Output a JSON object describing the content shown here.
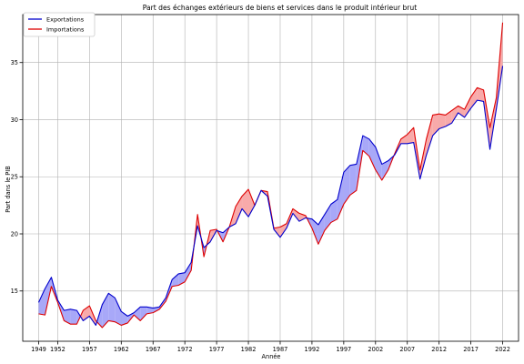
{
  "chart_data": {
    "type": "line",
    "title": "Part des échanges extérieurs de biens et services dans le produit intérieur brut",
    "xlabel": "Année",
    "ylabel": "Part dans le PIB",
    "xlim": [
      1946.5,
      2024.5
    ],
    "ylim": [
      10.6,
      39.2
    ],
    "x_ticks": [
      1949,
      1952,
      1957,
      1962,
      1967,
      1972,
      1977,
      1982,
      1987,
      1992,
      1997,
      2002,
      2007,
      2012,
      2017,
      2022
    ],
    "y_ticks": [
      15,
      20,
      25,
      30,
      35
    ],
    "grid": true,
    "legend_position": "top-left",
    "x": [
      1949,
      1950,
      1951,
      1952,
      1953,
      1954,
      1955,
      1956,
      1957,
      1958,
      1959,
      1960,
      1961,
      1962,
      1963,
      1964,
      1965,
      1966,
      1967,
      1968,
      1969,
      1970,
      1971,
      1972,
      1973,
      1974,
      1975,
      1976,
      1977,
      1978,
      1979,
      1980,
      1981,
      1982,
      1983,
      1984,
      1985,
      1986,
      1987,
      1988,
      1989,
      1990,
      1991,
      1992,
      1993,
      1994,
      1995,
      1996,
      1997,
      1998,
      1999,
      2000,
      2001,
      2002,
      2003,
      2004,
      2005,
      2006,
      2007,
      2008,
      2009,
      2010,
      2011,
      2012,
      2013,
      2014,
      2015,
      2016,
      2017,
      2018,
      2019,
      2020,
      2021,
      2022
    ],
    "series": [
      {
        "name": "Exportations",
        "color": "#0000cc",
        "values": [
          14.0,
          15.2,
          16.2,
          14.2,
          13.3,
          13.4,
          13.3,
          12.4,
          12.8,
          12.0,
          13.8,
          14.8,
          14.4,
          13.2,
          12.8,
          13.1,
          13.6,
          13.6,
          13.5,
          13.6,
          14.4,
          16.0,
          16.5,
          16.6,
          17.5,
          20.7,
          18.8,
          19.3,
          20.3,
          20.1,
          20.6,
          20.9,
          22.2,
          21.5,
          22.5,
          23.8,
          23.3,
          20.4,
          19.7,
          20.5,
          21.8,
          21.1,
          21.4,
          21.3,
          20.8,
          21.7,
          22.6,
          23.0,
          25.4,
          26.0,
          26.1,
          28.6,
          28.3,
          27.6,
          26.1,
          26.4,
          26.9,
          27.9,
          27.9,
          28.0,
          24.8,
          26.9,
          28.6,
          29.2,
          29.4,
          29.7,
          30.6,
          30.2,
          31.0,
          31.7,
          31.6,
          27.4,
          30.9,
          34.7
        ]
      },
      {
        "name": "Importations",
        "color": "#dd0000",
        "values": [
          13.0,
          12.9,
          15.4,
          14.0,
          12.4,
          12.1,
          12.1,
          13.3,
          13.7,
          12.4,
          11.8,
          12.4,
          12.3,
          12.0,
          12.2,
          12.9,
          12.4,
          13.0,
          13.1,
          13.4,
          14.1,
          15.4,
          15.5,
          15.8,
          16.8,
          21.7,
          18.0,
          20.3,
          20.4,
          19.3,
          20.6,
          22.4,
          23.3,
          23.9,
          22.5,
          23.8,
          23.7,
          20.5,
          20.6,
          20.9,
          22.2,
          21.8,
          21.6,
          20.5,
          19.1,
          20.3,
          21.0,
          21.3,
          22.6,
          23.4,
          23.8,
          27.3,
          26.8,
          25.6,
          24.7,
          25.6,
          27.0,
          28.3,
          28.7,
          29.3,
          25.6,
          28.3,
          30.4,
          30.5,
          30.4,
          30.8,
          31.2,
          30.9,
          32.0,
          32.8,
          32.6,
          29.3,
          31.9,
          38.5
        ]
      }
    ]
  }
}
